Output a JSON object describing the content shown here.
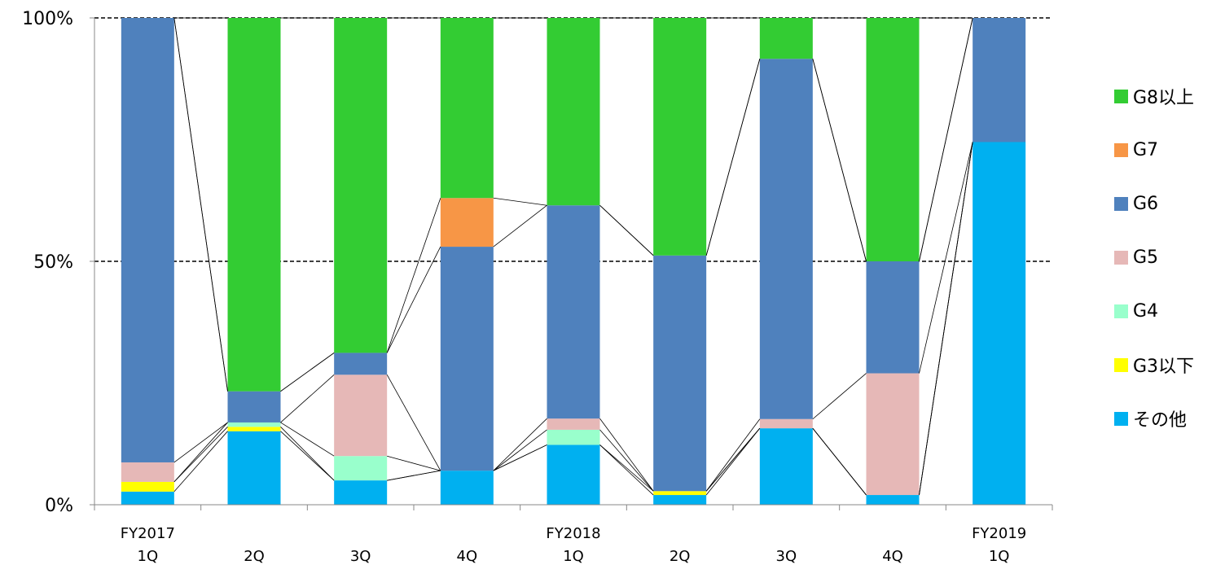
{
  "chart_data": {
    "type": "bar",
    "stacked": true,
    "percent": true,
    "series_lines": true,
    "ylim": [
      0,
      100
    ],
    "yticks": [
      0,
      50,
      100
    ],
    "ytick_labels": [
      "0%",
      "50%",
      "100%"
    ],
    "dashed_gridlines": [
      50,
      100
    ],
    "legend_position": "right",
    "categories": [
      [
        "FY2017",
        "1Q"
      ],
      [
        "2Q"
      ],
      [
        "3Q"
      ],
      [
        "4Q"
      ],
      [
        "FY2018",
        "1Q"
      ],
      [
        "2Q"
      ],
      [
        "3Q"
      ],
      [
        "4Q"
      ],
      [
        "FY2019",
        "1Q"
      ]
    ],
    "series": [
      {
        "name": "その他",
        "color": "#00B0F0",
        "values": [
          2.7,
          15.1,
          5.0,
          7.0,
          12.3,
          2.0,
          15.7,
          2.0,
          74.5
        ]
      },
      {
        "name": "G3以下",
        "color": "#FFFF00",
        "values": [
          2.0,
          0.9,
          0.0,
          0.0,
          0.0,
          0.8,
          0.0,
          0.0,
          0.0
        ]
      },
      {
        "name": "G4",
        "color": "#99FFCC",
        "values": [
          0.0,
          0.9,
          5.0,
          0.0,
          3.1,
          0.0,
          0.0,
          0.0,
          0.0
        ]
      },
      {
        "name": "G5",
        "color": "#E6B8B7",
        "values": [
          4.0,
          0.0,
          16.7,
          0.0,
          2.3,
          0.0,
          1.9,
          25.0,
          0.0
        ]
      },
      {
        "name": "G6",
        "color": "#4F81BD",
        "values": [
          91.3,
          6.4,
          4.5,
          46.0,
          43.8,
          48.4,
          74.0,
          23.0,
          25.5
        ]
      },
      {
        "name": "G7",
        "color": "#F79646",
        "values": [
          0.0,
          0.0,
          0.0,
          10.0,
          0.0,
          0.0,
          0.0,
          0.0,
          0.0
        ]
      },
      {
        "name": "G8以上",
        "color": "#33CC33",
        "values": [
          0.0,
          76.7,
          68.8,
          37.0,
          38.5,
          48.8,
          8.4,
          50.0,
          0.0
        ]
      }
    ],
    "legend_order": [
      "G8以上",
      "G7",
      "G6",
      "G5",
      "G4",
      "G3以下",
      "その他"
    ]
  }
}
